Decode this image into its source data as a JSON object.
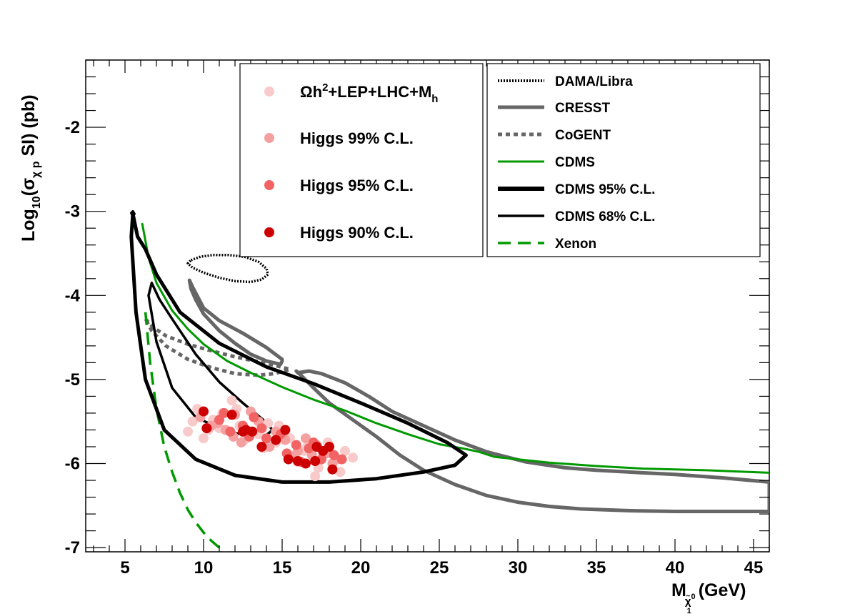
{
  "chart_data": {
    "type": "line",
    "xlabel_main": "M",
    "xlabel_sub": "χ̃",
    "xlabel_sup": "0",
    "xlabel_subsub": "1",
    "xlabel_unit": "(GeV)",
    "ylabel_pre": "Log",
    "ylabel_sub": "10",
    "ylabel_mid": "(σ",
    "ylabel_greek_sub": "χ p",
    "ylabel_post": " SI) (pb)",
    "xlim": [
      2.5,
      46
    ],
    "ylim": [
      -7.05,
      -1.2
    ],
    "x_ticks": [
      5,
      10,
      15,
      20,
      25,
      30,
      35,
      40,
      45
    ],
    "x_tick_labels": [
      "5",
      "10",
      "15",
      "20",
      "25",
      "30",
      "35",
      "40",
      "45"
    ],
    "y_ticks": [
      -7,
      -6,
      -5,
      -4,
      -3,
      -2
    ],
    "y_tick_labels": [
      "-7",
      "-6",
      "-5",
      "-4",
      "-3",
      "-2"
    ],
    "grid": false,
    "legend_points": [
      {
        "label_main": "Ωh",
        "label_sup": "2",
        "label_rest": "+LEP+LHC+M",
        "label_sub": "h",
        "color": "#f9caca"
      },
      {
        "label": "Higgs 99% C.L.",
        "color": "#f5a0a0"
      },
      {
        "label": "Higgs 95% C.L.",
        "color": "#f26464"
      },
      {
        "label": "Higgs 90% C.L.",
        "color": "#cc0000"
      }
    ],
    "legend_lines": [
      {
        "label": "DAMA/Libra",
        "color": "#000000",
        "style": "dotted"
      },
      {
        "label": "CRESST",
        "color": "#666666",
        "style": "solid-thick"
      },
      {
        "label": "CoGENT",
        "color": "#666666",
        "style": "dashed-gray"
      },
      {
        "label": "CDMS",
        "color": "#009900",
        "style": "solid"
      },
      {
        "label": "CDMS 95% C.L.",
        "color": "#000000",
        "style": "solid-thick"
      },
      {
        "label": "CDMS 68% C.L.",
        "color": "#000000",
        "style": "solid-medium"
      },
      {
        "label": "Xenon",
        "color": "#009900",
        "style": "dashed"
      }
    ],
    "series": [
      {
        "name": "DAMA/Libra",
        "color": "#000000",
        "style": "dotted",
        "closed": true,
        "x": [
          9.2,
          9.8,
          10.6,
          11.6,
          12.6,
          13.5,
          14.0,
          14.1,
          13.7,
          13.0,
          12.0,
          11.0,
          10.0,
          9.3,
          9.0,
          9.2
        ],
        "y": [
          -3.58,
          -3.54,
          -3.52,
          -3.52,
          -3.54,
          -3.6,
          -3.68,
          -3.75,
          -3.81,
          -3.84,
          -3.83,
          -3.79,
          -3.73,
          -3.67,
          -3.62,
          -3.58
        ]
      },
      {
        "name": "CRESST low-mass",
        "color": "#666666",
        "style": "solid-thick",
        "closed": false,
        "x": [
          15.0,
          14.9,
          14.0,
          13.0,
          12.0,
          11.0,
          10.0,
          9.5,
          9.2,
          9.1,
          9.3,
          10.0,
          11.0,
          12.5,
          14.0,
          15.0
        ],
        "y": [
          -4.78,
          -4.82,
          -4.78,
          -4.7,
          -4.57,
          -4.42,
          -4.22,
          -4.05,
          -3.92,
          -3.82,
          -3.9,
          -4.15,
          -4.3,
          -4.45,
          -4.62,
          -4.76
        ]
      },
      {
        "name": "CRESST high-mass",
        "color": "#666666",
        "style": "solid-thick",
        "closed": false,
        "x": [
          16.0,
          16.7,
          17.5,
          19.0,
          20.5,
          22.0,
          24.0,
          26.0,
          28.0,
          30.5,
          33.0,
          35.0,
          37.0,
          40.0,
          43.0,
          46.0,
          46.0,
          43.0,
          40.0,
          37.0,
          34.0,
          32.0,
          30.0,
          28.0,
          26.0,
          24.0,
          22.5,
          21.0,
          19.5,
          18.0,
          17.0,
          16.2,
          15.9,
          16.0
        ],
        "y": [
          -4.92,
          -4.9,
          -4.93,
          -5.04,
          -5.2,
          -5.38,
          -5.55,
          -5.72,
          -5.86,
          -5.98,
          -6.05,
          -6.08,
          -6.1,
          -6.13,
          -6.17,
          -6.22,
          -6.57,
          -6.57,
          -6.57,
          -6.56,
          -6.54,
          -6.51,
          -6.46,
          -6.38,
          -6.25,
          -6.08,
          -5.9,
          -5.68,
          -5.48,
          -5.28,
          -5.1,
          -4.95,
          -4.9,
          -4.92
        ]
      },
      {
        "name": "CoGENT",
        "color": "#666666",
        "style": "dashed-gray",
        "closed": false,
        "x": [
          6.3,
          6.8,
          7.6,
          9.0,
          10.5,
          12.0,
          13.5,
          14.5,
          15.5,
          14.5,
          13.5,
          12.0,
          10.5,
          9.0,
          7.6,
          6.7,
          6.3
        ],
        "y": [
          -4.28,
          -4.38,
          -4.48,
          -4.58,
          -4.66,
          -4.73,
          -4.79,
          -4.83,
          -4.88,
          -4.93,
          -4.95,
          -4.93,
          -4.86,
          -4.76,
          -4.6,
          -4.42,
          -4.28
        ]
      },
      {
        "name": "CDMS",
        "color": "#009900",
        "style": "solid",
        "closed": false,
        "x": [
          6.1,
          6.5,
          7.0,
          8.0,
          9.0,
          10.0,
          11.5,
          13.0,
          15.0,
          17.0,
          19.0,
          21.0,
          23.0,
          25.0,
          26.5,
          27.5,
          28.5,
          30.0,
          32.0,
          35.0,
          38.0,
          42.0,
          46.0
        ],
        "y": [
          -3.15,
          -3.55,
          -3.85,
          -4.18,
          -4.4,
          -4.58,
          -4.78,
          -4.92,
          -5.09,
          -5.24,
          -5.37,
          -5.52,
          -5.65,
          -5.77,
          -5.82,
          -5.86,
          -5.92,
          -5.95,
          -5.99,
          -6.03,
          -6.06,
          -6.08,
          -6.11
        ]
      },
      {
        "name": "Xenon",
        "color": "#009900",
        "style": "dashed",
        "closed": false,
        "x": [
          6.3,
          6.6,
          7.0,
          7.5,
          8.0,
          8.5,
          9.0,
          9.5,
          10.0,
          10.5,
          11.0,
          11.5,
          12.0
        ],
        "y": [
          -4.2,
          -4.8,
          -5.35,
          -5.8,
          -6.1,
          -6.35,
          -6.55,
          -6.7,
          -6.82,
          -6.92,
          -7.0,
          -7.08,
          -7.15
        ]
      },
      {
        "name": "CDMS 95% C.L.",
        "color": "#000000",
        "style": "solid-thick",
        "closed": true,
        "x": [
          5.5,
          5.8,
          6.3,
          7.0,
          8.5,
          11.0,
          14.0,
          17.0,
          20.0,
          23.0,
          25.5,
          26.7,
          26.0,
          24.0,
          21.0,
          18.0,
          15.0,
          12.0,
          9.5,
          7.5,
          6.3,
          5.7,
          5.4,
          5.5
        ],
        "y": [
          -3.03,
          -3.3,
          -3.45,
          -3.75,
          -4.2,
          -4.57,
          -4.85,
          -5.05,
          -5.28,
          -5.52,
          -5.75,
          -5.9,
          -6.02,
          -6.1,
          -6.18,
          -6.22,
          -6.22,
          -6.14,
          -5.95,
          -5.6,
          -5.0,
          -4.2,
          -3.3,
          -3.03
        ]
      },
      {
        "name": "CDMS 68% C.L.",
        "color": "#000000",
        "style": "solid-medium",
        "closed": true,
        "x": [
          6.7,
          7.2,
          8.0,
          9.5,
          11.0,
          12.5,
          13.8,
          14.4,
          14.0,
          13.0,
          11.5,
          9.5,
          8.0,
          7.0,
          6.5,
          6.7
        ],
        "y": [
          -3.85,
          -4.05,
          -4.28,
          -4.7,
          -5.03,
          -5.28,
          -5.48,
          -5.6,
          -5.66,
          -5.67,
          -5.62,
          -5.45,
          -5.1,
          -4.55,
          -4.0,
          -3.85
        ]
      },
      {
        "name": "CDMS 95% C.L. tip",
        "color": "#000000",
        "style": "solid-medium",
        "closed": false,
        "x": [
          5.4,
          5.5,
          5.6,
          5.5,
          5.4
        ],
        "y": [
          -3.02,
          -3.0,
          -3.03,
          -3.06,
          -3.02
        ]
      }
    ],
    "scatter": {
      "Omega_LEP_LHC_Mh": {
        "color": "#f9caca",
        "x": [
          9.3,
          9.6,
          10.3,
          11.2,
          12.3,
          13.5,
          14.6,
          15.5,
          16.6,
          17.6,
          18.6,
          19.5,
          10.0,
          11.8,
          13.2,
          15.0,
          16.4,
          17.9,
          12.6,
          14.1,
          15.8,
          17.1,
          18.7,
          11.0,
          9.0,
          13.8,
          16.0,
          17.3,
          19.0,
          14.8,
          12.1,
          10.6
        ],
        "y": [
          -5.5,
          -5.35,
          -5.6,
          -5.4,
          -5.55,
          -5.65,
          -5.75,
          -5.7,
          -5.8,
          -5.9,
          -5.95,
          -5.93,
          -5.7,
          -5.25,
          -5.45,
          -5.62,
          -5.85,
          -5.75,
          -5.72,
          -5.52,
          -5.9,
          -6.15,
          -6.1,
          -5.58,
          -5.62,
          -5.82,
          -5.98,
          -6.05,
          -5.85,
          -5.55,
          -5.35,
          -5.48
        ]
      },
      "Higgs_99": {
        "color": "#f5a0a0",
        "x": [
          9.8,
          10.5,
          11.4,
          12.0,
          12.8,
          13.5,
          14.2,
          15.2,
          16.0,
          16.9,
          17.8,
          18.5,
          10.9,
          11.9,
          13.0,
          14.6,
          15.7,
          17.2,
          18.2,
          12.4,
          16.5
        ],
        "y": [
          -5.45,
          -5.55,
          -5.6,
          -5.42,
          -5.65,
          -5.5,
          -5.8,
          -5.72,
          -5.85,
          -5.9,
          -5.88,
          -5.95,
          -5.52,
          -5.68,
          -5.38,
          -5.62,
          -5.92,
          -5.78,
          -6.0,
          -5.75,
          -5.7
        ]
      },
      "Higgs_95": {
        "color": "#f26464",
        "x": [
          10.2,
          11.0,
          11.7,
          12.5,
          13.2,
          14.0,
          14.9,
          15.9,
          16.7,
          17.5,
          18.3,
          12.9,
          15.3,
          17.0,
          11.3,
          13.7,
          16.2,
          18.8
        ],
        "y": [
          -5.58,
          -5.48,
          -5.62,
          -5.55,
          -5.45,
          -5.7,
          -5.65,
          -5.78,
          -5.82,
          -5.95,
          -5.9,
          -5.68,
          -5.88,
          -5.75,
          -5.4,
          -5.58,
          -5.98,
          -5.95
        ]
      },
      "Higgs_90": {
        "color": "#cc0000",
        "x": [
          10.0,
          10.2,
          11.8,
          12.7,
          13.1,
          13.7,
          14.6,
          15.2,
          16.0,
          16.5,
          17.1,
          17.2,
          17.6,
          18.0,
          18.2,
          15.4,
          12.5
        ],
        "y": [
          -5.38,
          -5.58,
          -5.42,
          -5.6,
          -5.62,
          -5.8,
          -5.72,
          -5.6,
          -5.97,
          -6.0,
          -5.97,
          -5.8,
          -5.85,
          -5.8,
          -6.07,
          -5.95,
          -5.62
        ]
      }
    }
  }
}
